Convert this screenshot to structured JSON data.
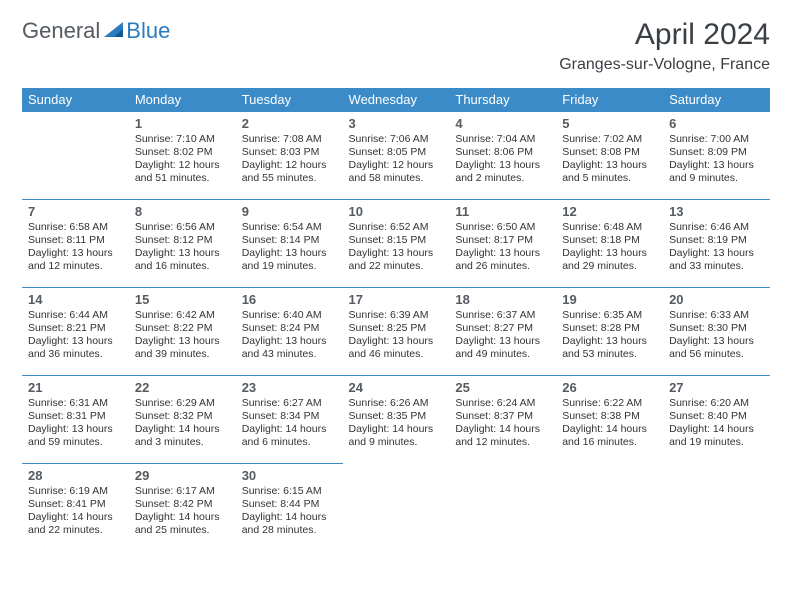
{
  "logo": {
    "general": "General",
    "blue": "Blue"
  },
  "title": "April 2024",
  "location": "Granges-sur-Vologne, France",
  "colors": {
    "header_bg": "#3b8bc9",
    "header_text": "#ffffff",
    "row_border": "#3b8bc9",
    "logo_gray": "#555b60",
    "logo_blue": "#2b7bbf",
    "text": "#333333",
    "background": "#ffffff"
  },
  "weekdays": [
    "Sunday",
    "Monday",
    "Tuesday",
    "Wednesday",
    "Thursday",
    "Friday",
    "Saturday"
  ],
  "weeks": [
    [
      null,
      {
        "n": "1",
        "sunrise": "Sunrise: 7:10 AM",
        "sunset": "Sunset: 8:02 PM",
        "dl1": "Daylight: 12 hours",
        "dl2": "and 51 minutes."
      },
      {
        "n": "2",
        "sunrise": "Sunrise: 7:08 AM",
        "sunset": "Sunset: 8:03 PM",
        "dl1": "Daylight: 12 hours",
        "dl2": "and 55 minutes."
      },
      {
        "n": "3",
        "sunrise": "Sunrise: 7:06 AM",
        "sunset": "Sunset: 8:05 PM",
        "dl1": "Daylight: 12 hours",
        "dl2": "and 58 minutes."
      },
      {
        "n": "4",
        "sunrise": "Sunrise: 7:04 AM",
        "sunset": "Sunset: 8:06 PM",
        "dl1": "Daylight: 13 hours",
        "dl2": "and 2 minutes."
      },
      {
        "n": "5",
        "sunrise": "Sunrise: 7:02 AM",
        "sunset": "Sunset: 8:08 PM",
        "dl1": "Daylight: 13 hours",
        "dl2": "and 5 minutes."
      },
      {
        "n": "6",
        "sunrise": "Sunrise: 7:00 AM",
        "sunset": "Sunset: 8:09 PM",
        "dl1": "Daylight: 13 hours",
        "dl2": "and 9 minutes."
      }
    ],
    [
      {
        "n": "7",
        "sunrise": "Sunrise: 6:58 AM",
        "sunset": "Sunset: 8:11 PM",
        "dl1": "Daylight: 13 hours",
        "dl2": "and 12 minutes."
      },
      {
        "n": "8",
        "sunrise": "Sunrise: 6:56 AM",
        "sunset": "Sunset: 8:12 PM",
        "dl1": "Daylight: 13 hours",
        "dl2": "and 16 minutes."
      },
      {
        "n": "9",
        "sunrise": "Sunrise: 6:54 AM",
        "sunset": "Sunset: 8:14 PM",
        "dl1": "Daylight: 13 hours",
        "dl2": "and 19 minutes."
      },
      {
        "n": "10",
        "sunrise": "Sunrise: 6:52 AM",
        "sunset": "Sunset: 8:15 PM",
        "dl1": "Daylight: 13 hours",
        "dl2": "and 22 minutes."
      },
      {
        "n": "11",
        "sunrise": "Sunrise: 6:50 AM",
        "sunset": "Sunset: 8:17 PM",
        "dl1": "Daylight: 13 hours",
        "dl2": "and 26 minutes."
      },
      {
        "n": "12",
        "sunrise": "Sunrise: 6:48 AM",
        "sunset": "Sunset: 8:18 PM",
        "dl1": "Daylight: 13 hours",
        "dl2": "and 29 minutes."
      },
      {
        "n": "13",
        "sunrise": "Sunrise: 6:46 AM",
        "sunset": "Sunset: 8:19 PM",
        "dl1": "Daylight: 13 hours",
        "dl2": "and 33 minutes."
      }
    ],
    [
      {
        "n": "14",
        "sunrise": "Sunrise: 6:44 AM",
        "sunset": "Sunset: 8:21 PM",
        "dl1": "Daylight: 13 hours",
        "dl2": "and 36 minutes."
      },
      {
        "n": "15",
        "sunrise": "Sunrise: 6:42 AM",
        "sunset": "Sunset: 8:22 PM",
        "dl1": "Daylight: 13 hours",
        "dl2": "and 39 minutes."
      },
      {
        "n": "16",
        "sunrise": "Sunrise: 6:40 AM",
        "sunset": "Sunset: 8:24 PM",
        "dl1": "Daylight: 13 hours",
        "dl2": "and 43 minutes."
      },
      {
        "n": "17",
        "sunrise": "Sunrise: 6:39 AM",
        "sunset": "Sunset: 8:25 PM",
        "dl1": "Daylight: 13 hours",
        "dl2": "and 46 minutes."
      },
      {
        "n": "18",
        "sunrise": "Sunrise: 6:37 AM",
        "sunset": "Sunset: 8:27 PM",
        "dl1": "Daylight: 13 hours",
        "dl2": "and 49 minutes."
      },
      {
        "n": "19",
        "sunrise": "Sunrise: 6:35 AM",
        "sunset": "Sunset: 8:28 PM",
        "dl1": "Daylight: 13 hours",
        "dl2": "and 53 minutes."
      },
      {
        "n": "20",
        "sunrise": "Sunrise: 6:33 AM",
        "sunset": "Sunset: 8:30 PM",
        "dl1": "Daylight: 13 hours",
        "dl2": "and 56 minutes."
      }
    ],
    [
      {
        "n": "21",
        "sunrise": "Sunrise: 6:31 AM",
        "sunset": "Sunset: 8:31 PM",
        "dl1": "Daylight: 13 hours",
        "dl2": "and 59 minutes."
      },
      {
        "n": "22",
        "sunrise": "Sunrise: 6:29 AM",
        "sunset": "Sunset: 8:32 PM",
        "dl1": "Daylight: 14 hours",
        "dl2": "and 3 minutes."
      },
      {
        "n": "23",
        "sunrise": "Sunrise: 6:27 AM",
        "sunset": "Sunset: 8:34 PM",
        "dl1": "Daylight: 14 hours",
        "dl2": "and 6 minutes."
      },
      {
        "n": "24",
        "sunrise": "Sunrise: 6:26 AM",
        "sunset": "Sunset: 8:35 PM",
        "dl1": "Daylight: 14 hours",
        "dl2": "and 9 minutes."
      },
      {
        "n": "25",
        "sunrise": "Sunrise: 6:24 AM",
        "sunset": "Sunset: 8:37 PM",
        "dl1": "Daylight: 14 hours",
        "dl2": "and 12 minutes."
      },
      {
        "n": "26",
        "sunrise": "Sunrise: 6:22 AM",
        "sunset": "Sunset: 8:38 PM",
        "dl1": "Daylight: 14 hours",
        "dl2": "and 16 minutes."
      },
      {
        "n": "27",
        "sunrise": "Sunrise: 6:20 AM",
        "sunset": "Sunset: 8:40 PM",
        "dl1": "Daylight: 14 hours",
        "dl2": "and 19 minutes."
      }
    ],
    [
      {
        "n": "28",
        "sunrise": "Sunrise: 6:19 AM",
        "sunset": "Sunset: 8:41 PM",
        "dl1": "Daylight: 14 hours",
        "dl2": "and 22 minutes."
      },
      {
        "n": "29",
        "sunrise": "Sunrise: 6:17 AM",
        "sunset": "Sunset: 8:42 PM",
        "dl1": "Daylight: 14 hours",
        "dl2": "and 25 minutes."
      },
      {
        "n": "30",
        "sunrise": "Sunrise: 6:15 AM",
        "sunset": "Sunset: 8:44 PM",
        "dl1": "Daylight: 14 hours",
        "dl2": "and 28 minutes."
      },
      null,
      null,
      null,
      null
    ]
  ]
}
